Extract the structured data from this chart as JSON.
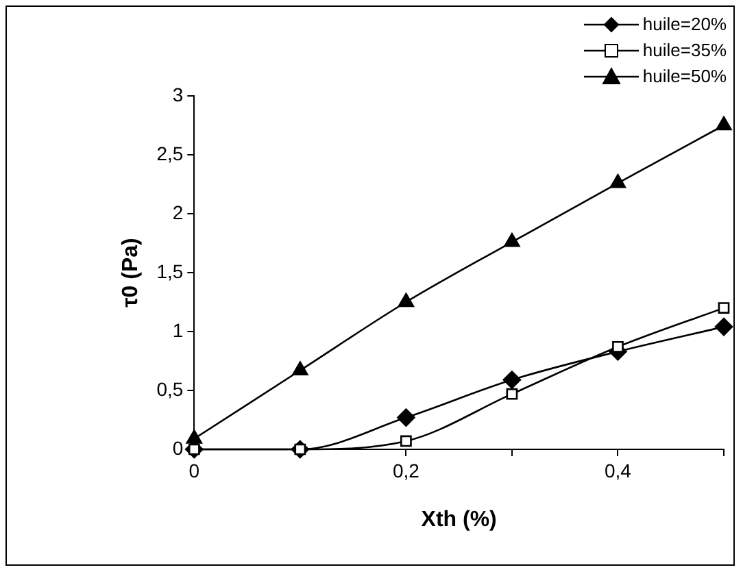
{
  "chart_data": {
    "type": "line",
    "xlabel": "Xth (%)",
    "ylabel": "τ0 (Pa)",
    "x": [
      0,
      0.1,
      0.2,
      0.3,
      0.4,
      0.5
    ],
    "xlim": [
      0,
      0.5
    ],
    "xticks": [
      0,
      {
        "value": 0.1,
        "label": null
      },
      {
        "value": 0.2,
        "label": "0,2"
      },
      {
        "value": 0.3,
        "label": null
      },
      {
        "value": 0.4,
        "label": "0,4"
      },
      {
        "value": 0.5,
        "label": null
      }
    ],
    "ylim": [
      0,
      3
    ],
    "yticks": [
      0,
      {
        "value": 0.5,
        "label": "0,5"
      },
      1,
      {
        "value": 1.5,
        "label": "1,5"
      },
      2,
      {
        "value": 2.5,
        "label": "2,5"
      },
      3
    ],
    "grid": false,
    "legend": "top right",
    "line_style": "solid",
    "series": [
      {
        "name": "huile=20%",
        "color": "#000000",
        "marker": "diamond",
        "values": [
          0,
          0,
          0.27,
          0.59,
          0.83,
          1.04
        ]
      },
      {
        "name": "huile=35%",
        "color": "#000000",
        "marker": "square",
        "values": [
          0,
          0,
          0.07,
          0.47,
          0.87,
          1.2
        ]
      },
      {
        "name": "huile=50%",
        "color": "#000000",
        "marker": "triangle",
        "values": [
          0.09,
          0.67,
          1.25,
          1.76,
          2.26,
          2.75
        ]
      }
    ]
  }
}
